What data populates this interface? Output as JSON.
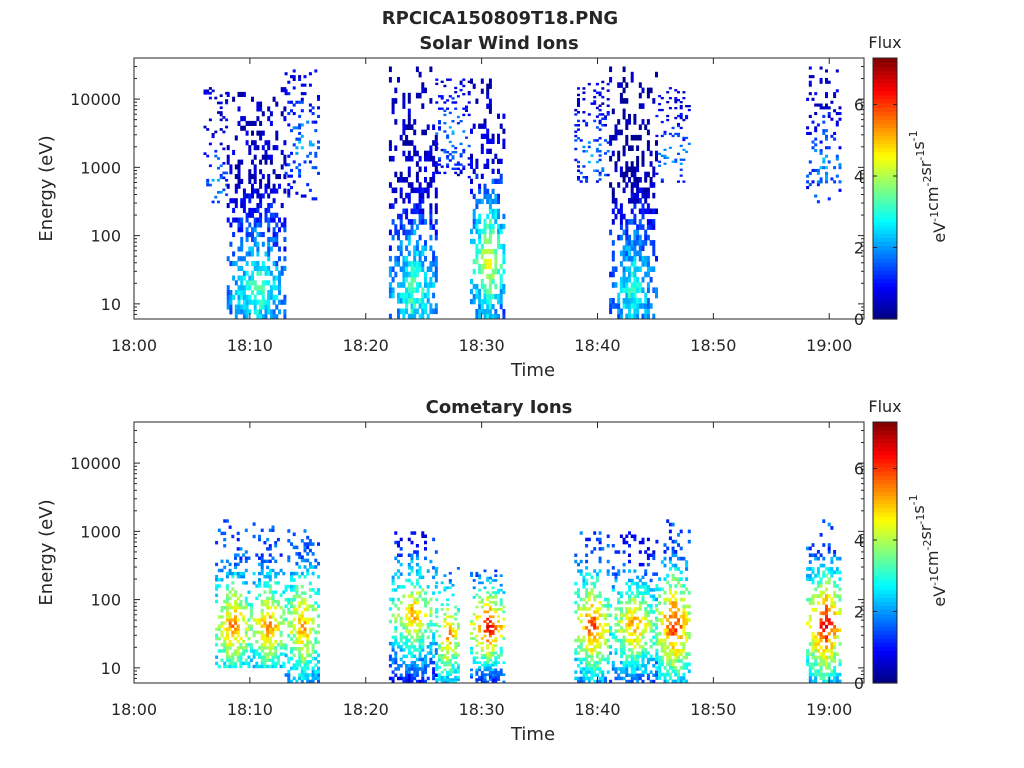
{
  "figure": {
    "title": "RPCICA150809T18.PNG"
  },
  "chart_data": [
    {
      "type": "heatmap",
      "title": "Solar Wind Ions",
      "xlabel": "Time",
      "ylabel": "Energy (eV)",
      "x_ticks": [
        "18:00",
        "18:10",
        "18:20",
        "18:30",
        "18:40",
        "18:50",
        "19:00"
      ],
      "xlim": [
        "18:00",
        "19:03"
      ],
      "y_scale": "log",
      "y_ticks": [
        {
          "value": 10,
          "label": "10"
        },
        {
          "value": 100,
          "label": "100"
        },
        {
          "value": 1000,
          "label": "1000"
        },
        {
          "value": 10000,
          "label": "10000"
        }
      ],
      "ylim": [
        6,
        40000
      ],
      "colorbar": {
        "title": "Flux",
        "label": "eV-1cm-2sr-1s-1",
        "min": 0,
        "max": 7.3,
        "ticks": [
          {
            "value": 0,
            "label": "0"
          },
          {
            "value": 2,
            "label": "2"
          },
          {
            "value": 4,
            "label": "4"
          },
          {
            "value": 6,
            "label": "6"
          }
        ],
        "colormap": "jet"
      },
      "regions": [
        {
          "start": "18:06",
          "end": "18:08",
          "e_top": 15000,
          "e_bottom": 300,
          "sparse": true,
          "low": 0.6,
          "high": 2.4,
          "peak": 2.2,
          "peak_e": 500
        },
        {
          "start": "18:08",
          "end": "18:13",
          "e_top": 15000,
          "e_bottom": 6,
          "sparse": false,
          "low": 0.4,
          "high": 3.4,
          "peak": 3.4,
          "peak_e": 15
        },
        {
          "start": "18:13",
          "end": "18:16",
          "e_top": 30000,
          "e_bottom": 300,
          "sparse": true,
          "low": 0.6,
          "high": 2.4,
          "peak": 2.2,
          "peak_e": 2000
        },
        {
          "start": "18:22",
          "end": "18:26",
          "e_top": 30000,
          "e_bottom": 6,
          "sparse": false,
          "low": 0.4,
          "high": 3.4,
          "peak": 3.4,
          "peak_e": 15
        },
        {
          "start": "18:26",
          "end": "18:29",
          "e_top": 20000,
          "e_bottom": 700,
          "sparse": true,
          "low": 0.6,
          "high": 2.4,
          "peak": 2.2,
          "peak_e": 3000
        },
        {
          "start": "18:29",
          "end": "18:32",
          "e_top": 20000,
          "e_bottom": 6,
          "sparse": false,
          "low": 0.4,
          "high": 4.6,
          "peak": 4.6,
          "peak_e": 40
        },
        {
          "start": "18:38",
          "end": "18:41",
          "e_top": 20000,
          "e_bottom": 600,
          "sparse": true,
          "low": 0.6,
          "high": 2.4,
          "peak": 2.2,
          "peak_e": 1500
        },
        {
          "start": "18:41",
          "end": "18:45",
          "e_top": 30000,
          "e_bottom": 6,
          "sparse": false,
          "low": 0.2,
          "high": 3.2,
          "peak": 3.2,
          "peak_e": 15
        },
        {
          "start": "18:45",
          "end": "18:48",
          "e_top": 15000,
          "e_bottom": 600,
          "sparse": true,
          "low": 0.6,
          "high": 2.4,
          "peak": 2.2,
          "peak_e": 1500
        },
        {
          "start": "18:58",
          "end": "19:01",
          "e_top": 30000,
          "e_bottom": 300,
          "sparse": true,
          "low": 0.6,
          "high": 2.4,
          "peak": 2.2,
          "peak_e": 1000
        }
      ]
    },
    {
      "type": "heatmap",
      "title": "Cometary Ions",
      "xlabel": "Time",
      "ylabel": "Energy (eV)",
      "x_ticks": [
        "18:00",
        "18:10",
        "18:20",
        "18:30",
        "18:40",
        "18:50",
        "19:00"
      ],
      "xlim": [
        "18:00",
        "19:03"
      ],
      "y_scale": "log",
      "y_ticks": [
        {
          "value": 10,
          "label": "10"
        },
        {
          "value": 100,
          "label": "100"
        },
        {
          "value": 1000,
          "label": "1000"
        },
        {
          "value": 10000,
          "label": "10000"
        }
      ],
      "ylim": [
        6,
        40000
      ],
      "colorbar": {
        "title": "Flux",
        "label": "eV-1cm-2sr-1s-1",
        "min": 0,
        "max": 7.3,
        "ticks": [
          {
            "value": 0,
            "label": "0"
          },
          {
            "value": 2,
            "label": "2"
          },
          {
            "value": 4,
            "label": "4"
          },
          {
            "value": 6,
            "label": "6"
          }
        ],
        "colormap": "jet"
      },
      "regions": [
        {
          "start": "18:07",
          "end": "18:10",
          "e_top": 1500,
          "e_bottom": 10,
          "sparse": false,
          "low": 1.5,
          "high": 5.8,
          "peak": 5.8,
          "peak_e": 40
        },
        {
          "start": "18:10",
          "end": "18:13",
          "e_top": 1500,
          "e_bottom": 10,
          "sparse": false,
          "low": 1.5,
          "high": 5.6,
          "peak": 5.6,
          "peak_e": 40
        },
        {
          "start": "18:13",
          "end": "18:16",
          "e_top": 1200,
          "e_bottom": 6,
          "sparse": false,
          "low": 1.5,
          "high": 5.5,
          "peak": 5.5,
          "peak_e": 40
        },
        {
          "start": "18:22",
          "end": "18:26",
          "e_top": 1000,
          "e_bottom": 6,
          "sparse": false,
          "low": 1.0,
          "high": 5.4,
          "peak": 5.4,
          "peak_e": 60
        },
        {
          "start": "18:26",
          "end": "18:28",
          "e_top": 300,
          "e_bottom": 6,
          "sparse": false,
          "low": 2.0,
          "high": 5.6,
          "peak": 5.6,
          "peak_e": 30
        },
        {
          "start": "18:29",
          "end": "18:32",
          "e_top": 300,
          "e_bottom": 6,
          "sparse": false,
          "low": 1.5,
          "high": 6.8,
          "peak": 6.8,
          "peak_e": 40
        },
        {
          "start": "18:38",
          "end": "18:41",
          "e_top": 1000,
          "e_bottom": 6,
          "sparse": false,
          "low": 1.5,
          "high": 6.2,
          "peak": 6.2,
          "peak_e": 40
        },
        {
          "start": "18:41",
          "end": "18:45",
          "e_top": 1000,
          "e_bottom": 6,
          "sparse": false,
          "low": 1.0,
          "high": 5.5,
          "peak": 5.5,
          "peak_e": 40
        },
        {
          "start": "18:45",
          "end": "18:48",
          "e_top": 1500,
          "e_bottom": 6,
          "sparse": false,
          "low": 1.5,
          "high": 6.5,
          "peak": 6.5,
          "peak_e": 40
        },
        {
          "start": "18:58",
          "end": "19:01",
          "e_top": 1500,
          "e_bottom": 6,
          "sparse": false,
          "low": 1.5,
          "high": 7.0,
          "peak": 7.0,
          "peak_e": 40
        }
      ]
    }
  ]
}
